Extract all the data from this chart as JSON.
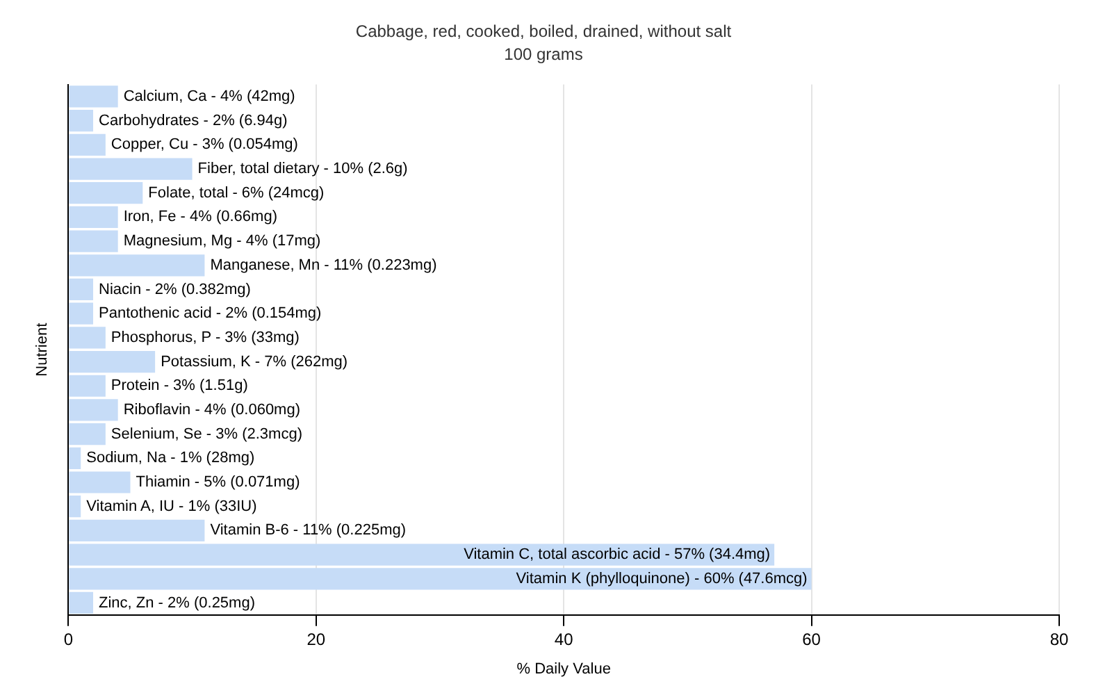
{
  "chart_data": {
    "type": "bar",
    "orientation": "horizontal",
    "title": "Cabbage, red, cooked, boiled, drained, without salt",
    "subtitle": "100 grams",
    "xlabel": "% Daily Value",
    "ylabel": "Nutrient",
    "categories": [
      "Calcium, Ca -",
      "Carbohydrates -",
      "Copper, Cu -",
      "Fiber, total dietary -",
      "Folate, total -",
      "Iron, Fe -",
      "Magnesium, Mg -",
      "Manganese, Mn -",
      "Niacin -",
      "Pantothenic acid -",
      "Phosphorus, P -",
      "Potassium, K -",
      "Protein -",
      "Riboflavin -",
      "Selenium, Se -",
      "Sodium, Na -",
      "Thiamin -",
      "Vitamin A, IU -",
      "Vitamin B-6 -",
      "Vitamin C, total ascorbic acid -",
      "Vitamin K (phylloquinone) -",
      "Zinc, Zn -"
    ],
    "tick_labels": "x",
    "values": [
      4,
      2,
      3,
      10,
      6,
      4,
      4,
      11,
      2,
      2,
      3,
      7,
      3,
      4,
      3,
      1,
      5,
      1,
      11,
      57,
      60,
      2
    ],
    "value_labels": [
      "4% (42mg)",
      "2% (6.94g)",
      "3% (0.054mg)",
      "10% (2.6g)",
      "6% (24mcg)",
      "4% (0.66mg)",
      "4% (17mg)",
      "11% (0.223mg)",
      "2% (0.382mg)",
      "2% (0.154mg)",
      "3% (33mg)",
      "7% (262mg)",
      "3% (1.51g)",
      "4% (0.060mg)",
      "3% (2.3mcg)",
      "1% (28mg)",
      "5% (0.071mg)",
      "1% (33IU)",
      "11% (0.225mg)",
      "57% (34.4mg)",
      "60% (47.6mcg)",
      "2% (0.25mg)"
    ],
    "color": "#c6dcf7",
    "xlim": [
      0,
      80
    ],
    "xticks": [
      0,
      20,
      40,
      60,
      80
    ],
    "grid": "x"
  }
}
